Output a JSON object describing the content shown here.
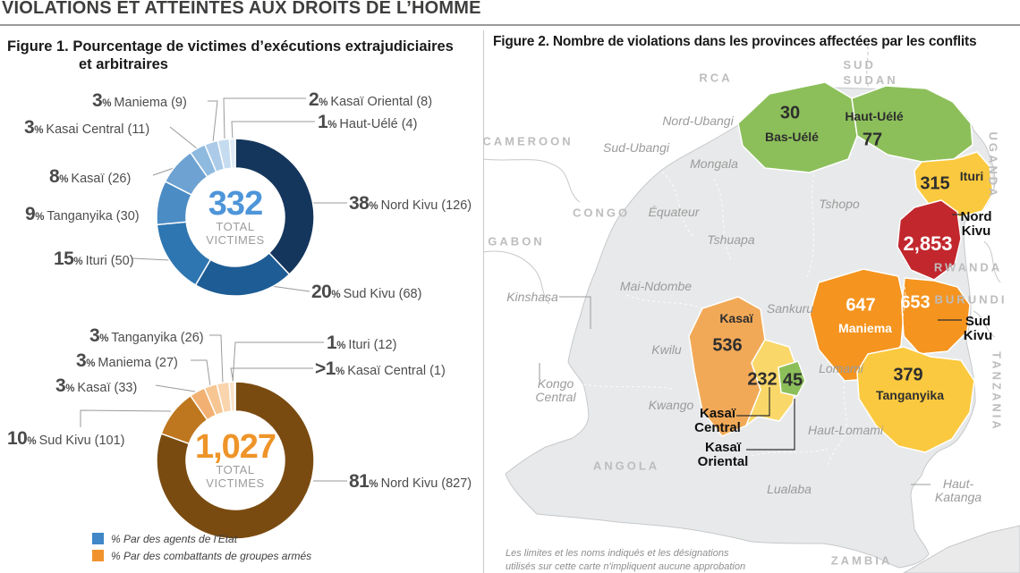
{
  "header": {
    "title": "VIOLATIONS ET ATTEINTES AUX DROITS DE L’HOMME"
  },
  "fig1": {
    "title_line1": "Figure 1. Pourcentage de victimes d’exécutions extrajudiciaires",
    "title_line2": "et arbitraires",
    "legend": [
      {
        "color": "#3f87c7",
        "label": "% Par des agents de l'Etat"
      },
      {
        "color": "#f0932c",
        "label": "% Par des combattants de groupes armés"
      }
    ]
  },
  "fig2": {
    "title": "Figure 2. Nombre de violations dans les provinces affectées par les conflits",
    "callouts": {
      "nord_kivu": {
        "line1": "Nord",
        "line2": "Kivu"
      },
      "sud_kivu": {
        "line1": "Sud",
        "line2": "Kivu"
      },
      "kasai_central": {
        "line1": "Kasaï",
        "line2": "Central"
      },
      "kasai_oriental": {
        "line1": "Kasaï",
        "line2": "Oriental"
      },
      "kongo_central": {
        "line1": "Kongo",
        "line2": "Central"
      },
      "haut_katanga": {
        "line1": "Haut-",
        "line2": "Katanga"
      },
      "sud_sudan": {
        "line1": "SUD",
        "line2": "SUDAN"
      }
    },
    "countries": [
      "RCA",
      "CAMEROON",
      "CONGO",
      "GABON",
      "UGANDA",
      "RWANDA",
      "BURUNDI",
      "TANZANIA",
      "ANGOLA",
      "ZAMBIA"
    ],
    "other_provinces": [
      "Nord-Ubangi",
      "Sud-Ubangi",
      "Mongala",
      "Équateur",
      "Tshopo",
      "Tshuapa",
      "Mai-Ndombe",
      "Sankuru",
      "Kwilu",
      "Kwango",
      "Lomami",
      "Haut-Lomami",
      "Lualaba",
      "Kinshasa"
    ],
    "disclaimer_line1": "Les limites et les noms indiqués et les désignations",
    "disclaimer_line2": "utilisés sur cette carte n'impliquent aucune approbation"
  },
  "chart_data": [
    {
      "type": "donut",
      "title": "Pourcentage de victimes d'exécutions extrajudiciaires et arbitraires — par des agents de l'Etat",
      "total": "332",
      "total_color": "#4e95d9",
      "center_label": [
        "TOTAL",
        "VICTIMES"
      ],
      "unit": "%",
      "items": [
        {
          "pct": "38",
          "label": "Nord Kivu (126)",
          "count": 126,
          "color": "#15365c"
        },
        {
          "pct": "20",
          "label": "Sud Kivu (68)",
          "count": 68,
          "color": "#1d5c94"
        },
        {
          "pct": "15",
          "label": "Ituri (50)",
          "count": 50,
          "color": "#2e76b1"
        },
        {
          "pct": "9",
          "label": "Tanganyika (30)",
          "count": 30,
          "color": "#4c8cc4"
        },
        {
          "pct": "8",
          "label": "Kasaï (26)",
          "count": 26,
          "color": "#6da2d2"
        },
        {
          "pct": "3",
          "label": "Kasai Central (11)",
          "count": 11,
          "color": "#8fbadf"
        },
        {
          "pct": "3",
          "label": "Maniema (9)",
          "count": 9,
          "color": "#abcbe9"
        },
        {
          "pct": "2",
          "label": "Kasaï Oriental (8)",
          "count": 8,
          "color": "#c5dbf0"
        },
        {
          "pct": "1",
          "label": "Haut-Uélé (4)",
          "count": 4,
          "color": "#dfebf7"
        }
      ]
    },
    {
      "type": "donut",
      "title": "Pourcentage de victimes d'exécutions extrajudiciaires et arbitraires — par des combattants de groupes armés",
      "total": "1,027",
      "total_color": "#ee9428",
      "center_label": [
        "TOTAL",
        "VICTIMES"
      ],
      "unit": "%",
      "items": [
        {
          "pct": "81",
          "label": "Nord Kivu (827)",
          "count": 827,
          "color": "#7a4b10"
        },
        {
          "pct": "10",
          "label": "Sud Kivu (101)",
          "count": 101,
          "color": "#be771e"
        },
        {
          "pct": "3",
          "label": "Kasaï (33)",
          "count": 33,
          "color": "#f2b172"
        },
        {
          "pct": "3",
          "label": "Maniema (27)",
          "count": 27,
          "color": "#f6c693"
        },
        {
          "pct": "3",
          "label": "Tanganyika (26)",
          "count": 26,
          "color": "#f9d4ad"
        },
        {
          "pct": "1",
          "label": "Ituri (12)",
          "count": 12,
          "color": "#fbe3c9"
        },
        {
          "pct": ">1",
          "label": "Kasaï Central (1)",
          "count": 1,
          "color": "#fdf0e1"
        }
      ]
    },
    {
      "type": "choropleth-map",
      "title": "Nombre de violations dans les provinces affectées par les conflits",
      "regions": [
        {
          "name": "Bas-Uélé",
          "value": "30",
          "color": "#8cbf5a"
        },
        {
          "name": "Haut-Uélé",
          "value": "77",
          "color": "#8cbf5a"
        },
        {
          "name": "Ituri",
          "value": "315",
          "color": "#fbc93f"
        },
        {
          "name": "Nord Kivu",
          "value": "2,853",
          "color": "#c2272d"
        },
        {
          "name": "Maniema",
          "value": "647",
          "color": "#f5941f"
        },
        {
          "name": "Sud Kivu",
          "value": "653",
          "color": "#f5941f"
        },
        {
          "name": "Kasaï",
          "value": "536",
          "color": "#f2a957"
        },
        {
          "name": "Kasaï Central",
          "value": "232",
          "color": "#f9d869"
        },
        {
          "name": "Kasaï Oriental",
          "value": "45",
          "color": "#8cbf5a"
        },
        {
          "name": "Tanganyika",
          "value": "379",
          "color": "#fbc93f"
        }
      ]
    }
  ]
}
